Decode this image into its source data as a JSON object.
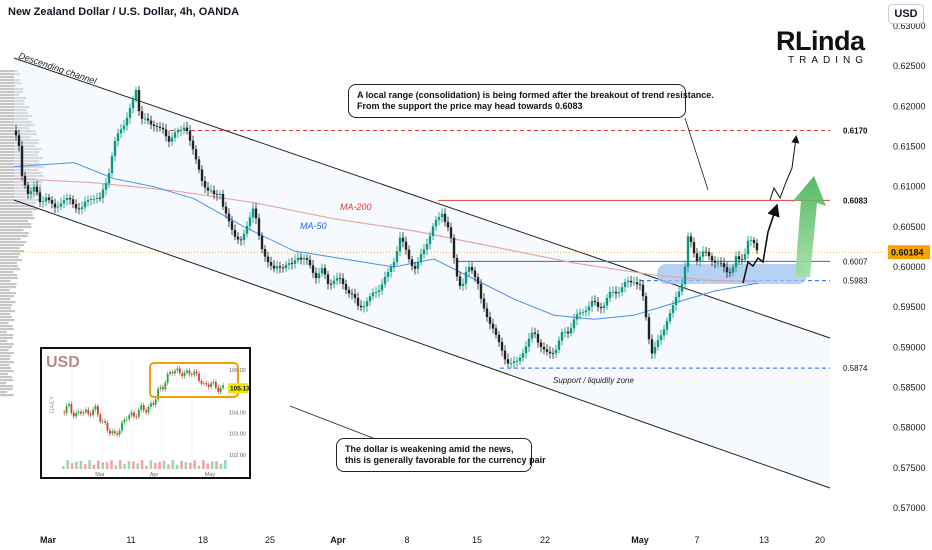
{
  "header": {
    "title": "New Zealand Dollar / U.S. Dollar, 4h, OANDA"
  },
  "currency_button": {
    "label": "USD"
  },
  "logo": {
    "main": "RLinda",
    "sub": "TRADING"
  },
  "annotations": {
    "channel": "Descending channel",
    "ma200": "MA-200",
    "ma50": "MA-50",
    "support_zone": "Support / liquidity zone",
    "note_top_line1": "A local range (consolidation) is being formed after the breakout of trend resistance.",
    "note_top_line2": "From the support the price may head towards 0.6083",
    "note_bottom_line1": "The dollar is weakening amid the news,",
    "note_bottom_line2": "this is generally favorable for the currency pair"
  },
  "colors": {
    "up": "#089981",
    "down": "#222222",
    "ma50": "#4c8fe8",
    "ma200": "#e0a8a8",
    "level_red": "#e23b3b",
    "level_blue": "#2962ff",
    "price_tag": "#f7a400",
    "arrow_green": "#5cc46a"
  },
  "chart_data": [
    {
      "type": "line",
      "title": "New Zealand Dollar / U.S. Dollar, 4h, OANDA",
      "xlabel": "",
      "ylabel": "",
      "ylim": [
        0.5675,
        0.632
      ],
      "y_ticks": [
        "0.63000",
        "0.62500",
        "0.62000",
        "0.61500",
        "0.61000",
        "0.60500",
        "0.60000",
        "0.59500",
        "0.59000",
        "0.58500",
        "0.58000",
        "0.57500",
        "0.57000"
      ],
      "x_ticks": [
        "Mar",
        "11",
        "18",
        "25",
        "Apr",
        "8",
        "15",
        "22",
        "May",
        "7",
        "13",
        "20"
      ],
      "current_price": "0.60184",
      "levels": [
        {
          "label": "0.6170",
          "value": 0.617,
          "style": "dashed-red"
        },
        {
          "label": "0.6083",
          "value": 0.6083,
          "style": "solid-red"
        },
        {
          "label": "0.6007",
          "value": 0.6007,
          "style": "solid-blue"
        },
        {
          "label": "0.5983",
          "value": 0.5983,
          "style": "dashed-blue"
        },
        {
          "label": "0.5874",
          "value": 0.5874,
          "style": "dashed-blue"
        }
      ],
      "series": [
        {
          "name": "NZD/USD",
          "points": [
            [
              0,
              0.617
            ],
            [
              4,
              0.616
            ],
            [
              8,
              0.611
            ],
            [
              14,
              0.6095
            ],
            [
              20,
              0.6098
            ],
            [
              26,
              0.608
            ],
            [
              32,
              0.609
            ],
            [
              40,
              0.607
            ],
            [
              48,
              0.6085
            ],
            [
              58,
              0.608
            ],
            [
              68,
              0.6072
            ],
            [
              78,
              0.609
            ],
            [
              86,
              0.6082
            ],
            [
              94,
              0.6115
            ],
            [
              100,
              0.615
            ],
            [
              106,
              0.617
            ],
            [
              112,
              0.6185
            ],
            [
              118,
              0.62
            ],
            [
              122,
              0.622
            ],
            [
              126,
              0.619
            ],
            [
              130,
              0.6185
            ],
            [
              136,
              0.6175
            ],
            [
              142,
              0.618
            ],
            [
              148,
              0.617
            ],
            [
              154,
              0.6155
            ],
            [
              160,
              0.617
            ],
            [
              166,
              0.6165
            ],
            [
              172,
              0.6178
            ],
            [
              176,
              0.616
            ],
            [
              182,
              0.613
            ],
            [
              188,
              0.611
            ],
            [
              194,
              0.6095
            ],
            [
              200,
              0.6088
            ],
            [
              206,
              0.6095
            ],
            [
              210,
              0.607
            ],
            [
              216,
              0.605
            ],
            [
              222,
              0.604
            ],
            [
              228,
              0.603
            ],
            [
              232,
              0.6045
            ],
            [
              236,
              0.6065
            ],
            [
              240,
              0.608
            ],
            [
              244,
              0.604
            ],
            [
              248,
              0.602
            ],
            [
              254,
              0.601
            ],
            [
              260,
              0.5995
            ],
            [
              266,
              0.6
            ],
            [
              272,
              0.6005
            ],
            [
              278,
              0.6
            ],
            [
              284,
              0.6015
            ],
            [
              290,
              0.601
            ],
            [
              296,
              0.6
            ],
            [
              302,
              0.599
            ],
            [
              308,
              0.5995
            ],
            [
              314,
              0.598
            ],
            [
              320,
              0.5985
            ],
            [
              326,
              0.5982
            ],
            [
              332,
              0.5975
            ],
            [
              338,
              0.5965
            ],
            [
              344,
              0.595
            ],
            [
              350,
              0.5955
            ],
            [
              356,
              0.596
            ],
            [
              362,
              0.597
            ],
            [
              368,
              0.598
            ],
            [
              374,
              0.599
            ],
            [
              380,
              0.601
            ],
            [
              386,
              0.6035
            ],
            [
              390,
              0.6025
            ],
            [
              396,
              0.601
            ],
            [
              402,
              0.5995
            ],
            [
              406,
              0.601
            ],
            [
              412,
              0.603
            ],
            [
              418,
              0.6045
            ],
            [
              424,
              0.606
            ],
            [
              428,
              0.607
            ],
            [
              432,
              0.6055
            ],
            [
              436,
              0.604
            ],
            [
              440,
              0.601
            ],
            [
              444,
              0.5985
            ],
            [
              448,
              0.5975
            ],
            [
              452,
              0.599
            ],
            [
              456,
              0.6
            ],
            [
              460,
              0.5995
            ],
            [
              464,
              0.598
            ],
            [
              468,
              0.595
            ],
            [
              472,
              0.594
            ],
            [
              478,
              0.593
            ],
            [
              484,
              0.5905
            ],
            [
              490,
              0.589
            ],
            [
              496,
              0.588
            ],
            [
              502,
              0.5878
            ],
            [
              508,
              0.5895
            ],
            [
              514,
              0.5905
            ],
            [
              520,
              0.592
            ],
            [
              526,
              0.5905
            ],
            [
              532,
              0.589
            ],
            [
              536,
              0.5892
            ],
            [
              542,
              0.59
            ],
            [
              548,
              0.5915
            ],
            [
              554,
              0.592
            ],
            [
              560,
              0.5935
            ],
            [
              566,
              0.594
            ],
            [
              572,
              0.595
            ],
            [
              578,
              0.5955
            ],
            [
              584,
              0.595
            ],
            [
              590,
              0.5955
            ],
            [
              596,
              0.5965
            ],
            [
              602,
              0.597
            ],
            [
              608,
              0.5975
            ],
            [
              614,
              0.598
            ],
            [
              620,
              0.5985
            ],
            [
              626,
              0.5975
            ],
            [
              630,
              0.5955
            ],
            [
              634,
              0.592
            ],
            [
              638,
              0.5895
            ],
            [
              642,
              0.59
            ],
            [
              646,
              0.591
            ],
            [
              650,
              0.5925
            ],
            [
              654,
              0.594
            ],
            [
              658,
              0.5945
            ],
            [
              662,
              0.596
            ],
            [
              666,
              0.5975
            ],
            [
              670,
              0.599
            ],
            [
              674,
              0.6035
            ],
            [
              678,
              0.6025
            ],
            [
              682,
              0.601
            ],
            [
              688,
              0.6018
            ],
            [
              694,
              0.6013
            ],
            [
              700,
              0.601
            ],
            [
              706,
              0.6002
            ],
            [
              712,
              0.5995
            ],
            [
              718,
              0.5998
            ],
            [
              722,
              0.601
            ],
            [
              726,
              0.6005
            ],
            [
              730,
              0.6015
            ],
            [
              734,
              0.6035
            ],
            [
              738,
              0.603
            ],
            [
              744,
              0.6018
            ]
          ]
        },
        {
          "name": "MA-50",
          "points": [
            [
              0,
              0.6125
            ],
            [
              60,
              0.613
            ],
            [
              100,
              0.611
            ],
            [
              140,
              0.61
            ],
            [
              180,
              0.6085
            ],
            [
              230,
              0.605
            ],
            [
              280,
              0.602
            ],
            [
              330,
              0.601
            ],
            [
              380,
              0.6
            ],
            [
              420,
              0.601
            ],
            [
              460,
              0.5985
            ],
            [
              500,
              0.596
            ],
            [
              540,
              0.594
            ],
            [
              580,
              0.5935
            ],
            [
              620,
              0.594
            ],
            [
              660,
              0.5955
            ],
            [
              700,
              0.597
            ],
            [
              744,
              0.598
            ]
          ]
        },
        {
          "name": "MA-200",
          "points": [
            [
              0,
              0.611
            ],
            [
              80,
              0.6105
            ],
            [
              160,
              0.6095
            ],
            [
              240,
              0.608
            ],
            [
              320,
              0.606
            ],
            [
              400,
              0.6045
            ],
            [
              480,
              0.6025
            ],
            [
              560,
              0.6005
            ],
            [
              640,
              0.599
            ],
            [
              700,
              0.5983
            ],
            [
              744,
              0.5982
            ]
          ]
        }
      ]
    },
    {
      "type": "line",
      "title": "USD",
      "xlabel": "",
      "ylabel": "DAILY",
      "ylim": [
        101.8,
        106.6
      ],
      "y_ticks": [
        "106.00",
        "105.13",
        "104.00",
        "103.00",
        "102.00"
      ],
      "x_ticks": [
        "Mar",
        "Apr",
        "May"
      ],
      "current_value": "105.13",
      "series": [
        {
          "name": "USD",
          "points": [
            [
              0,
              104.0
            ],
            [
              6,
              104.3
            ],
            [
              12,
              103.8
            ],
            [
              18,
              104.1
            ],
            [
              24,
              103.9
            ],
            [
              30,
              104.2
            ],
            [
              36,
              103.6
            ],
            [
              42,
              103.2
            ],
            [
              48,
              102.9
            ],
            [
              54,
              103.3
            ],
            [
              60,
              103.9
            ],
            [
              66,
              103.8
            ],
            [
              72,
              104.2
            ],
            [
              78,
              104.1
            ],
            [
              84,
              104.5
            ],
            [
              88,
              105.0
            ],
            [
              92,
              105.2
            ],
            [
              96,
              105.6
            ],
            [
              100,
              106.0
            ],
            [
              106,
              105.9
            ],
            [
              112,
              105.8
            ],
            [
              118,
              105.9
            ],
            [
              124,
              105.7
            ],
            [
              130,
              105.2
            ],
            [
              136,
              105.4
            ],
            [
              142,
              105.1
            ],
            [
              148,
              105.13
            ]
          ]
        }
      ]
    }
  ]
}
